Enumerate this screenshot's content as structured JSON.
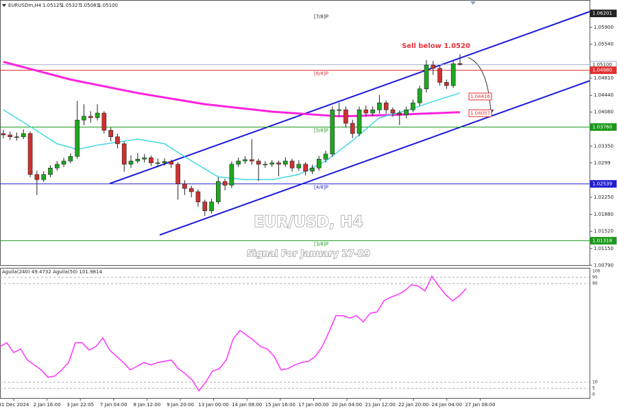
{
  "chart_data": [
    {
      "type": "candlestick",
      "symbol_text": "EURUSDm,H4",
      "ohlc_text": [
        "1.05125",
        "1.05327",
        "1.05083",
        "1.05100"
      ],
      "title": "EUR/USD, H4",
      "subtitle": "Signal For January 27-29",
      "annotation": "Sell below 1.0520",
      "bull_color": "#1fa81f",
      "bear_color": "#d03030",
      "xlim": [
        -0.5,
        87.3
      ],
      "ylim": [
        1.00779,
        1.06489
      ],
      "yticks": [
        {
          "value": 1.0079,
          "label": "1.00790"
        },
        {
          "value": 1.0115,
          "label": "1.01150"
        },
        {
          "value": 1.0152,
          "label": "1.01520"
        },
        {
          "value": 1.0188,
          "label": "1.01880"
        },
        {
          "value": 1.0225,
          "label": "1.02250"
        },
        1.0299,
        {
          "value": 1.0335,
          "label": "1.03350"
        },
        {
          "value": 1.0371,
          "label": "1.03710"
        },
        {
          "value": 1.0408,
          "label": "1.04080"
        },
        {
          "value": 1.0444,
          "label": "1.04440"
        },
        {
          "value": 1.0481,
          "label": "1.04810"
        },
        {
          "value": 1.0554,
          "label": "1.05540"
        },
        {
          "value": 1.059,
          "label": "1.05900"
        }
      ],
      "categories": [
        "31 Dec 2024",
        "2 Jan 16:00",
        "3 Jan 22:05",
        "7 Jan 04:00",
        "8 Jan 12:00",
        "9 Jan 20:00",
        "13 Jan 00:00",
        "14 Jan 08:00",
        "15 Jan 16:00",
        "17 Jan 00:00",
        "20 Jan 04:00",
        "21 Jan 12:00",
        "22 Jan 20:00",
        "24 Jan 04:00",
        "27 Jan 08:00"
      ],
      "open": [
        1.0362,
        1.0359,
        1.0355,
        1.0355,
        1.0362,
        1.0274,
        1.0263,
        1.0274,
        1.0288,
        1.0296,
        1.0303,
        1.0313,
        1.0391,
        1.0399,
        1.0396,
        1.0406,
        1.0369,
        1.0355,
        1.034,
        1.0296,
        1.0303,
        1.0307,
        1.031,
        1.0299,
        1.0299,
        1.0302,
        1.0296,
        1.0254,
        1.0244,
        1.0237,
        1.0215,
        1.0196,
        1.0215,
        1.0259,
        1.0251,
        1.0296,
        1.0303,
        1.0306,
        1.0303,
        1.0296,
        1.0296,
        1.0299,
        1.0296,
        1.0303,
        1.0288,
        1.0296,
        1.0281,
        1.0288,
        1.0307,
        1.0318,
        1.0413,
        1.0413,
        1.0384,
        1.0362,
        1.0413,
        1.0406,
        1.0413,
        1.0428,
        1.0413,
        1.0406,
        1.0402,
        1.0413,
        1.0428,
        1.0458,
        1.0509,
        1.0502,
        1.0472,
        1.0465,
        1.05125
      ],
      "high": [
        1.037,
        1.0366,
        1.0364,
        1.0371,
        1.0366,
        1.0282,
        1.0281,
        1.0294,
        1.0303,
        1.031,
        1.032,
        1.0432,
        1.0425,
        1.041,
        1.0425,
        1.041,
        1.0375,
        1.0362,
        1.0345,
        1.0315,
        1.032,
        1.0318,
        1.0315,
        1.0308,
        1.0309,
        1.0306,
        1.03,
        1.0262,
        1.025,
        1.0242,
        1.022,
        1.0222,
        1.0268,
        1.0265,
        1.0302,
        1.031,
        1.0313,
        1.035,
        1.0308,
        1.0303,
        1.0305,
        1.0304,
        1.0311,
        1.0308,
        1.0305,
        1.03,
        1.0295,
        1.0314,
        1.0325,
        1.042,
        1.0428,
        1.042,
        1.0392,
        1.042,
        1.0422,
        1.042,
        1.0445,
        1.0433,
        1.0418,
        1.0412,
        1.042,
        1.0435,
        1.0465,
        1.052,
        1.0518,
        1.0508,
        1.0478,
        1.0518,
        1.05327
      ],
      "low": [
        1.0352,
        1.0348,
        1.0347,
        1.035,
        1.0268,
        1.023,
        1.0258,
        1.0268,
        1.0282,
        1.029,
        1.0298,
        1.0308,
        1.038,
        1.0385,
        1.039,
        1.0362,
        1.0345,
        1.033,
        1.028,
        1.0288,
        1.0298,
        1.03,
        1.0292,
        1.029,
        1.0293,
        1.0288,
        1.022,
        1.023,
        1.0225,
        1.0205,
        1.0185,
        1.019,
        1.021,
        1.024,
        1.0245,
        1.029,
        1.0297,
        1.0295,
        1.026,
        1.0288,
        1.029,
        1.027,
        1.029,
        1.028,
        1.0282,
        1.0272,
        1.0275,
        1.0282,
        1.03,
        1.0312,
        1.0398,
        1.0375,
        1.0352,
        1.0356,
        1.0398,
        1.04,
        1.0405,
        1.0405,
        1.0398,
        1.038,
        1.0395,
        1.0408,
        1.0422,
        1.045,
        1.0488,
        1.0465,
        1.0458,
        1.046,
        1.05083
      ],
      "close": [
        1.0359,
        1.0355,
        1.0355,
        1.0362,
        1.0274,
        1.0263,
        1.0274,
        1.0288,
        1.0296,
        1.0303,
        1.0313,
        1.0391,
        1.0399,
        1.0396,
        1.0406,
        1.0369,
        1.0355,
        1.034,
        1.0296,
        1.0303,
        1.0307,
        1.031,
        1.0299,
        1.0299,
        1.0302,
        1.0296,
        1.0254,
        1.0244,
        1.0237,
        1.0215,
        1.0196,
        1.0215,
        1.0259,
        1.0251,
        1.0296,
        1.0303,
        1.0306,
        1.0303,
        1.0296,
        1.0296,
        1.0299,
        1.0296,
        1.0303,
        1.0288,
        1.0296,
        1.0281,
        1.0288,
        1.0307,
        1.0318,
        1.0413,
        1.0413,
        1.0384,
        1.0362,
        1.0413,
        1.0406,
        1.0413,
        1.0428,
        1.0413,
        1.0406,
        1.0402,
        1.0413,
        1.0428,
        1.0458,
        1.0509,
        1.0502,
        1.0472,
        1.0465,
        1.0512,
        1.051
      ],
      "overlays": [
        {
          "color": "#ff22dd",
          "x": [
            0,
            10,
            20,
            30,
            40,
            50,
            58,
            68
          ],
          "values": [
            1.0516,
            1.0478,
            1.0449,
            1.0425,
            1.0409,
            1.0399,
            1.0402,
            1.0408
          ],
          "end_label": {
            "value": 1.04057,
            "label": "1.04057"
          }
        },
        {
          "color": "#40d8e0",
          "x": [
            0,
            4,
            8,
            11,
            14,
            20,
            24,
            28,
            32,
            36,
            40,
            44,
            48,
            52,
            56,
            60,
            64,
            68
          ],
          "values": [
            1.0413,
            1.0377,
            1.034,
            1.0328,
            1.0337,
            1.035,
            1.034,
            1.0303,
            1.0269,
            1.0263,
            1.0263,
            1.0274,
            1.0303,
            1.0347,
            1.0396,
            1.0411,
            1.0431,
            1.0449
          ],
          "end_label": {
            "value": 1.04416,
            "label": "1.04416"
          }
        }
      ],
      "levels": [
        {
          "value": 1.06201,
          "label": "1.06201",
          "murrey": "[7/8]P",
          "color": "#222222",
          "line": false,
          "filled": true
        },
        {
          "value": 1.051,
          "label": "1.05100",
          "color": "#9fb0c8",
          "line": true,
          "filled": false
        },
        {
          "value": 1.0498,
          "label": "1.04980",
          "murrey": "[6/8]P",
          "color": "#e03030",
          "line": true,
          "filled": true
        },
        {
          "value": 1.0376,
          "label": "1.03760",
          "murrey": "[5/8]P",
          "color": "#1a9a1a",
          "line": true,
          "filled": true
        },
        {
          "value": 1.02539,
          "label": "1.02539",
          "murrey": "[4/8]P",
          "color": "#2020d0",
          "line": true,
          "filled": true
        },
        {
          "value": 1.01318,
          "label": "1.01318",
          "murrey": "[3/8]P",
          "color": "#1a9a1a",
          "line": true,
          "filled": true
        }
      ]
    },
    {
      "type": "line",
      "title": "Aguila(240) 49.4732  Aguila(50) 101.9814",
      "color": "#ff33ff",
      "ylim": [
        0,
        100
      ],
      "yticks": [
        0,
        5,
        10,
        90,
        95,
        100
      ],
      "values": [
        39,
        42,
        34,
        37,
        28,
        24,
        20,
        14,
        15,
        20,
        26,
        42,
        42,
        36,
        39,
        46,
        36,
        31,
        26,
        20,
        23,
        26,
        24,
        26,
        27,
        28,
        21,
        17,
        12,
        3,
        10,
        19,
        21,
        28,
        45,
        52,
        48,
        44,
        39,
        37,
        31,
        20,
        21,
        24,
        26,
        27,
        31,
        39,
        51,
        64,
        64,
        62,
        64,
        59,
        66,
        67,
        76,
        79,
        81,
        84,
        89,
        88,
        84,
        96,
        88,
        81,
        76,
        80,
        86
      ]
    }
  ]
}
